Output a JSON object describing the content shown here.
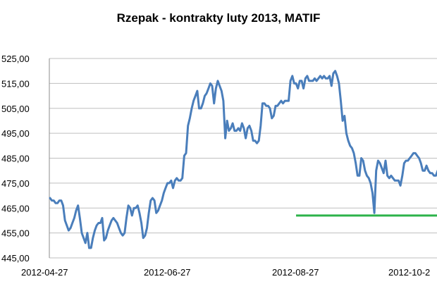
{
  "chart_data": {
    "type": "line",
    "title": "Rzepak - kontrakty luty 2013, MATIF",
    "xlabel": "",
    "ylabel": "",
    "ylim": [
      445,
      525
    ],
    "y_ticks": [
      "445,00",
      "455,00",
      "465,00",
      "475,00",
      "485,00",
      "495,00",
      "505,00",
      "515,00",
      "525,00"
    ],
    "x_ticks": [
      "2012-04-27",
      "2012-06-27",
      "2012-08-27",
      "2012-10-2"
    ],
    "grid": "horizontal",
    "legend": "none",
    "colors": {
      "series": "#4a7ebb",
      "support_line": "#2db34a",
      "grid": "#bfbfbf"
    },
    "series": [
      {
        "values": [
          469,
          468,
          468,
          467,
          467,
          468,
          468,
          466,
          460,
          458,
          456,
          457,
          459,
          461,
          464,
          466,
          461,
          455,
          453,
          451,
          455,
          449,
          449,
          453,
          456,
          458,
          459,
          459,
          461,
          452,
          453,
          456,
          458,
          460,
          461,
          460,
          459,
          457,
          455,
          454,
          455,
          461,
          466,
          465,
          462,
          465,
          465,
          466,
          463,
          459,
          453,
          454,
          457,
          463,
          468,
          469,
          468,
          463,
          464,
          466,
          468,
          471,
          473,
          475,
          475,
          476,
          473,
          476,
          477,
          476,
          476,
          477,
          486,
          487,
          498,
          501,
          505,
          508,
          510,
          512,
          505,
          505,
          507,
          510,
          511,
          513,
          515,
          514,
          507,
          513,
          516,
          514,
          512,
          508,
          493,
          500,
          496,
          497,
          499,
          496,
          496,
          497,
          496,
          499,
          497,
          493,
          497,
          498,
          496,
          492,
          492,
          491,
          492,
          498,
          507,
          507,
          506,
          506,
          505,
          501,
          502,
          506,
          506,
          507,
          508,
          507,
          508,
          508,
          508,
          516,
          518,
          515,
          515,
          513,
          516,
          516,
          513,
          517,
          518,
          516,
          516,
          516,
          517,
          516,
          517,
          518,
          517,
          518,
          517,
          517,
          518,
          514,
          519,
          520,
          518,
          515,
          508,
          500,
          502,
          495,
          492,
          490,
          489,
          487,
          483,
          478,
          478,
          485,
          484,
          480,
          478,
          477,
          475,
          471,
          463,
          480,
          484,
          483,
          481,
          479,
          484,
          478,
          477,
          478,
          477,
          476,
          476,
          476,
          474,
          478,
          483,
          484,
          484,
          485,
          486,
          487,
          487,
          486,
          485,
          483,
          480,
          480,
          482,
          480,
          479,
          479,
          478,
          478,
          480
        ]
      }
    ],
    "support_line": {
      "value": 462,
      "start_index": 132,
      "end_index": 217
    }
  }
}
